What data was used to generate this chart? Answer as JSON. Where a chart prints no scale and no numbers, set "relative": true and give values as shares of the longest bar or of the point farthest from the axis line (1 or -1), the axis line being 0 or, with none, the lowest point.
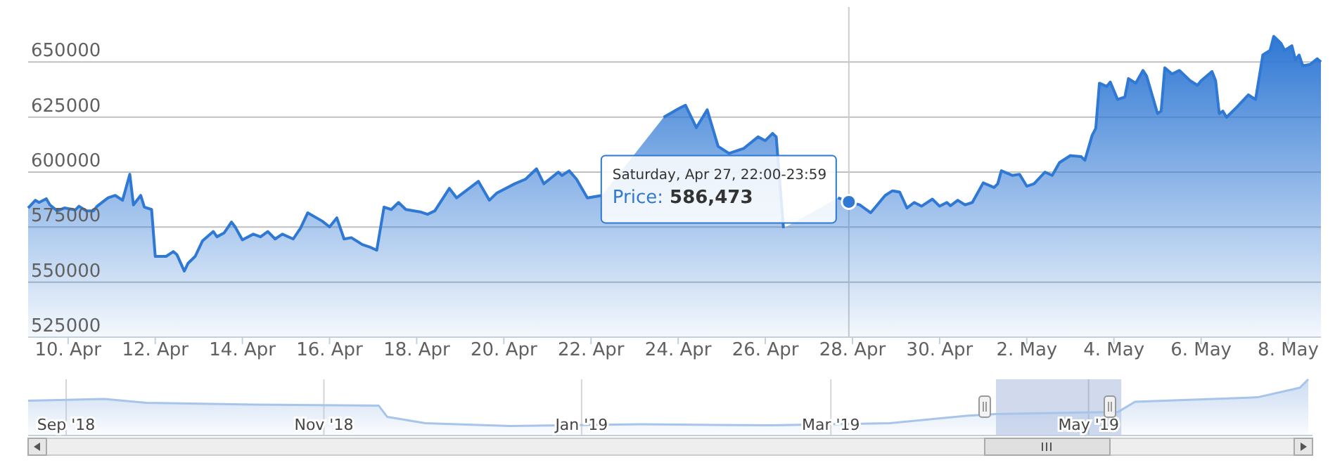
{
  "chart_data": [
    {
      "type": "area",
      "ylim": [
        525000,
        675000
      ],
      "yticks": [
        525000,
        550000,
        575000,
        600000,
        625000,
        650000
      ],
      "grid": "y",
      "xlim": [
        "2019-04-09T02:00",
        "2019-05-08T18:00"
      ],
      "xticks": [
        {
          "value": "2019-04-10",
          "label": "10. Apr"
        },
        {
          "value": "2019-04-12",
          "label": "12. Apr"
        },
        {
          "value": "2019-04-14",
          "label": "14. Apr"
        },
        {
          "value": "2019-04-16",
          "label": "16. Apr"
        },
        {
          "value": "2019-04-18",
          "label": "18. Apr"
        },
        {
          "value": "2019-04-20",
          "label": "20. Apr"
        },
        {
          "value": "2019-04-22",
          "label": "22. Apr"
        },
        {
          "value": "2019-04-24",
          "label": "24. Apr"
        },
        {
          "value": "2019-04-26",
          "label": "26. Apr"
        },
        {
          "value": "2019-04-28",
          "label": "28. Apr"
        },
        {
          "value": "2019-04-30",
          "label": "30. Apr"
        },
        {
          "value": "2019-05-02",
          "label": "2. May"
        },
        {
          "value": "2019-05-04",
          "label": "4. May"
        },
        {
          "value": "2019-05-06",
          "label": "6. May"
        },
        {
          "value": "2019-05-08",
          "label": "8. May"
        }
      ],
      "x": [
        "2019-04-09T02:00",
        "2019-04-09T06:00",
        "2019-04-09T08:00",
        "2019-04-09T12:00",
        "2019-04-09T14:00",
        "2019-04-09T18:00",
        "2019-04-09T22:00",
        "2019-04-10T04:00",
        "2019-04-10T06:00",
        "2019-04-10T10:00",
        "2019-04-10T14:00",
        "2019-04-10T16:00",
        "2019-04-10T22:00",
        "2019-04-11T02:00",
        "2019-04-11T06:00",
        "2019-04-11T10:00",
        "2019-04-11T12:00",
        "2019-04-11T16:00",
        "2019-04-11T18:00",
        "2019-04-11T22:00",
        "2019-04-12T00:00",
        "2019-04-12T06:00",
        "2019-04-12T10:00",
        "2019-04-12T12:00",
        "2019-04-12T16:00",
        "2019-04-12T18:00",
        "2019-04-12T22:00",
        "2019-04-13T02:00",
        "2019-04-13T08:00",
        "2019-04-13T10:00",
        "2019-04-13T14:00",
        "2019-04-13T18:00",
        "2019-04-13T20:00",
        "2019-04-14T00:00",
        "2019-04-14T06:00",
        "2019-04-14T10:00",
        "2019-04-14T14:00",
        "2019-04-14T18:00",
        "2019-04-14T22:00",
        "2019-04-15T04:00",
        "2019-04-15T08:00",
        "2019-04-15T12:00",
        "2019-04-15T20:00",
        "2019-04-16T00:00",
        "2019-04-16T04:00",
        "2019-04-16T08:00",
        "2019-04-16T12:00",
        "2019-04-16T18:00",
        "2019-04-16T22:00",
        "2019-04-17T02:00",
        "2019-04-17T06:00",
        "2019-04-17T10:00",
        "2019-04-17T14:00",
        "2019-04-17T18:00",
        "2019-04-18T02:00",
        "2019-04-18T06:00",
        "2019-04-18T10:00",
        "2019-04-18T18:00",
        "2019-04-18T22:00",
        "2019-04-19T10:00",
        "2019-04-19T16:00",
        "2019-04-19T20:00",
        "2019-04-20T06:00",
        "2019-04-20T12:00",
        "2019-04-20T18:00",
        "2019-04-20T22:00",
        "2019-04-21T06:00",
        "2019-04-21T08:00",
        "2019-04-21T12:00",
        "2019-04-21T16:00",
        "2019-04-21T22:00",
        "2019-04-22T06:00",
        "2019-04-22T22:00",
        "2019-04-23T10:00",
        "2019-04-23T16:00",
        "2019-04-24T00:00",
        "2019-04-24T04:00",
        "2019-04-24T10:00",
        "2019-04-24T16:00",
        "2019-04-24T22:00",
        "2019-04-25T04:00",
        "2019-04-25T12:00",
        "2019-04-25T20:00",
        "2019-04-26T00:00",
        "2019-04-26T04:00",
        "2019-04-26T06:00",
        "2019-04-26T10:00",
        "2019-04-26T14:00",
        "2019-04-26T20:00",
        "2019-04-27T00:00",
        "2019-04-27T06:00",
        "2019-04-27T10:00",
        "2019-04-27T16:00",
        "2019-04-27T22:00",
        "2019-04-28T04:00",
        "2019-04-28T10:00",
        "2019-04-28T18:00",
        "2019-04-28T22:00",
        "2019-04-29T02:00",
        "2019-04-29T06:00",
        "2019-04-29T10:00",
        "2019-04-29T14:00",
        "2019-04-29T20:00",
        "2019-04-30T00:00",
        "2019-04-30T04:00",
        "2019-04-30T06:00",
        "2019-04-30T10:00",
        "2019-04-30T14:00",
        "2019-04-30T18:00",
        "2019-05-01T00:00",
        "2019-05-01T06:00",
        "2019-05-01T08:00",
        "2019-05-01T10:00",
        "2019-05-01T16:00",
        "2019-05-01T20:00",
        "2019-05-02T00:00",
        "2019-05-02T04:00",
        "2019-05-02T10:00",
        "2019-05-02T14:00",
        "2019-05-02T18:00",
        "2019-05-03T00:00",
        "2019-05-03T06:00",
        "2019-05-03T08:00",
        "2019-05-03T12:00",
        "2019-05-03T14:00",
        "2019-05-03T16:00",
        "2019-05-03T20:00",
        "2019-05-03T22:00",
        "2019-05-04T02:00",
        "2019-05-04T06:00",
        "2019-05-04T08:00",
        "2019-05-04T12:00",
        "2019-05-04T16:00",
        "2019-05-04T18:00",
        "2019-05-05T00:00",
        "2019-05-05T02:00",
        "2019-05-05T04:00",
        "2019-05-05T08:00",
        "2019-05-05T12:00",
        "2019-05-05T18:00",
        "2019-05-05T22:00",
        "2019-05-06T00:00",
        "2019-05-06T06:00",
        "2019-05-06T08:00",
        "2019-05-06T10:00",
        "2019-05-06T12:00",
        "2019-05-06T14:00",
        "2019-05-06T20:00",
        "2019-05-07T02:00",
        "2019-05-07T06:00",
        "2019-05-07T10:00",
        "2019-05-07T14:00",
        "2019-05-07T16:00",
        "2019-05-07T20:00",
        "2019-05-07T22:00",
        "2019-05-08T02:00",
        "2019-05-08T04:00",
        "2019-05-08T06:00",
        "2019-05-08T08:00",
        "2019-05-08T12:00",
        "2019-05-08T16:00",
        "2019-05-08T18:00"
      ],
      "series": [
        {
          "color": "#2f78d4",
          "values": [
            583700,
            587200,
            586200,
            587900,
            585100,
            582400,
            583700,
            582800,
            584500,
            582400,
            582400,
            584500,
            588300,
            589400,
            587200,
            599000,
            585100,
            589400,
            584100,
            583000,
            561700,
            561700,
            563900,
            562400,
            555000,
            558500,
            561700,
            568700,
            573000,
            570600,
            572400,
            577300,
            575100,
            569200,
            571800,
            570600,
            573000,
            569600,
            571800,
            569600,
            574500,
            581500,
            577700,
            575100,
            579200,
            569600,
            570200,
            567100,
            566000,
            564500,
            584100,
            583000,
            586200,
            583000,
            581900,
            580800,
            582400,
            592600,
            588300,
            595800,
            587200,
            590400,
            594700,
            596800,
            601500,
            594700,
            600000,
            598500,
            600600,
            596800,
            588300,
            589400,
            null,
            null,
            624900,
            628700,
            630400,
            620200,
            628300,
            611700,
            608500,
            610700,
            616000,
            614300,
            617600,
            616000,
            574500,
            null,
            null,
            null,
            null,
            null,
            588300,
            586500,
            585100,
            581500,
            589400,
            591500,
            590900,
            583700,
            586200,
            584500,
            587700,
            584500,
            586200,
            584700,
            587200,
            585100,
            586200,
            595100,
            593000,
            594700,
            600600,
            598500,
            599000,
            593600,
            594700,
            600000,
            598500,
            604300,
            607500,
            607000,
            605400,
            616700,
            619900,
            640400,
            638900,
            640900,
            633000,
            634100,
            642500,
            640400,
            646200,
            643600,
            626600,
            627700,
            647400,
            644600,
            646200,
            641500,
            639400,
            641500,
            645700,
            641500,
            626600,
            627700,
            624900,
            629800,
            635100,
            633000,
            653200,
            655300,
            661700,
            658500,
            655300,
            657400,
            651000,
            653200,
            648300,
            648900,
            651500,
            650000
          ]
        },
        {
          "type": "scatter",
          "color": "#2f78d4",
          "marker": "circle",
          "x": [
            "2019-04-27T22:00"
          ],
          "values": [
            586473
          ]
        }
      ],
      "ref_lines": [
        {
          "axis": "x",
          "value": "2019-04-27T22:00",
          "color": "#cccccc"
        }
      ],
      "annotations": [
        "Saturday, Apr 27, 22:00-23:59",
        "Price: 586,473"
      ]
    },
    {
      "type": "area",
      "relative": true,
      "grid": "x",
      "xlim": [
        "2018-08-23",
        "2019-06-23"
      ],
      "xticks": [
        {
          "value": "2018-09-01",
          "label": "Sep '18"
        },
        {
          "value": "2018-11-01",
          "label": "Nov '18"
        },
        {
          "value": "2019-01-01",
          "label": "Jan '19"
        },
        {
          "value": "2019-03-01",
          "label": "Mar '19"
        },
        {
          "value": "2019-05-01",
          "label": "May '19"
        }
      ],
      "x": [
        "2018-08-23",
        "2018-09-10",
        "2018-09-20",
        "2018-10-15",
        "2018-11-14",
        "2018-11-16",
        "2018-11-25",
        "2018-12-15",
        "2019-01-15",
        "2019-02-15",
        "2019-03-15",
        "2019-04-02",
        "2019-04-09",
        "2019-05-08",
        "2019-05-12",
        "2019-06-10",
        "2019-06-20",
        "2019-06-22"
      ],
      "series": [
        {
          "color": "#a7c4ea",
          "values": [
            0.62,
            0.65,
            0.58,
            0.55,
            0.53,
            0.33,
            0.22,
            0.17,
            0.2,
            0.18,
            0.22,
            0.35,
            0.38,
            0.42,
            0.6,
            0.68,
            0.85,
            1
          ]
        }
      ],
      "bands": [
        {
          "axis": "x",
          "from": "2019-04-09T02:00",
          "to": "2019-05-08T18:00",
          "color": "#6685c2"
        }
      ]
    }
  ]
}
